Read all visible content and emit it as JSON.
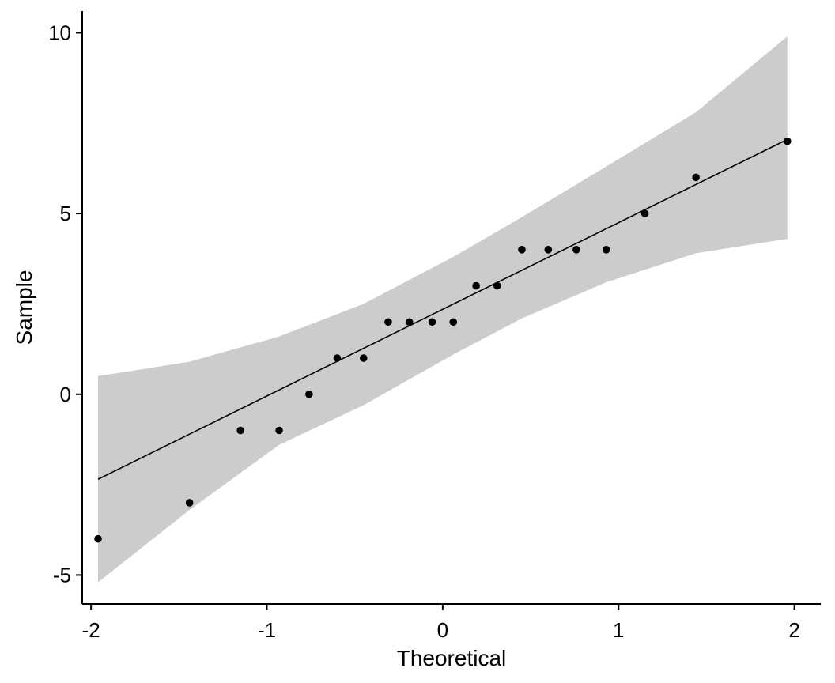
{
  "chart_data": {
    "type": "scatter",
    "title": "",
    "xlabel": "Theoretical",
    "ylabel": "Sample",
    "xlim": [
      -2.05,
      2.15
    ],
    "ylim": [
      -5.8,
      10.6
    ],
    "x_ticks": [
      -2,
      -1,
      0,
      1,
      2
    ],
    "x_tick_labels": [
      "-2",
      "-1",
      "0",
      "1",
      "2"
    ],
    "y_ticks": [
      -5,
      0,
      5,
      10
    ],
    "y_tick_labels": [
      "-5",
      "0",
      "5",
      "10"
    ],
    "grid": false,
    "legend": "none",
    "points": {
      "x": [
        -1.96,
        -1.44,
        -1.15,
        -0.93,
        -0.76,
        -0.6,
        -0.45,
        -0.31,
        -0.19,
        -0.06,
        0.06,
        0.19,
        0.31,
        0.45,
        0.6,
        0.76,
        0.93,
        1.15,
        1.44,
        1.96
      ],
      "y": [
        -4,
        -3,
        -1,
        -1,
        0,
        1,
        1,
        2,
        2,
        2,
        2,
        3,
        3,
        4,
        4,
        4,
        4,
        5,
        6,
        7
      ]
    },
    "reference_line": {
      "x": [
        -1.96,
        1.96
      ],
      "y": [
        -2.35,
        7.05
      ]
    },
    "confidence_band": {
      "x": [
        -1.96,
        -1.44,
        -0.93,
        -0.45,
        0.06,
        0.45,
        0.93,
        1.44,
        1.96
      ],
      "upper": [
        0.5,
        0.9,
        1.6,
        2.5,
        3.8,
        4.9,
        6.3,
        7.8,
        9.9
      ],
      "lower": [
        -5.2,
        -3.2,
        -1.4,
        -0.3,
        1.1,
        2.1,
        3.1,
        3.9,
        4.3
      ]
    },
    "colors": {
      "band": "#cccccc",
      "points": "#000000",
      "line": "#000000",
      "axis": "#000000"
    }
  }
}
